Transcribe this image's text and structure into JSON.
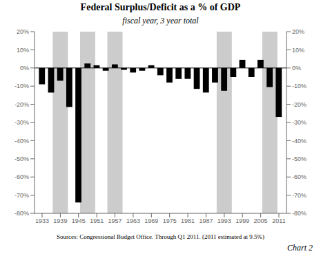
{
  "chart_data": {
    "type": "bar",
    "title": "Federal Surplus/Deficit as a % of GDP",
    "subtitle": "fiscal year, 3 year total",
    "footnote": "Sources:  Congressional Budget Office.  Through Q1 2011.  (2011 estimated at 9.5%)",
    "chart_label": "Chart 2",
    "x": [
      1933,
      1936,
      1939,
      1942,
      1945,
      1948,
      1951,
      1954,
      1957,
      1960,
      1963,
      1966,
      1969,
      1972,
      1975,
      1978,
      1981,
      1984,
      1987,
      1990,
      1993,
      1996,
      1999,
      2002,
      2005,
      2008,
      2011
    ],
    "values": [
      -9.0,
      -13.5,
      -7.0,
      -21.5,
      -74.0,
      2.5,
      1.5,
      -1.5,
      2.0,
      -1.0,
      -2.5,
      -1.5,
      1.5,
      -4.0,
      -8.0,
      -6.0,
      -6.0,
      -11.5,
      -13.5,
      -8.0,
      -12.5,
      -5.0,
      4.5,
      -5.0,
      4.5,
      -10.5,
      -27.0
    ],
    "color": "#000000",
    "bands": {
      "ranges": [
        [
          1936.5,
          1941.5
        ],
        [
          1945.5,
          1950.5
        ],
        [
          1954.5,
          1959.5
        ],
        [
          1990.5,
          1995.5
        ],
        [
          2005.5,
          2010.5
        ]
      ],
      "color": "#cccccc"
    },
    "xlim": [
      1930.5,
      2013.5
    ],
    "xticks": [
      1933,
      1939,
      1945,
      1951,
      1957,
      1963,
      1969,
      1975,
      1981,
      1987,
      1993,
      1999,
      2005,
      2011
    ],
    "ylim": [
      -80,
      20
    ],
    "yticks": [
      {
        "value": -80,
        "label": "-80%"
      },
      {
        "value": -70,
        "label": "-70%"
      },
      {
        "value": -60,
        "label": "-60%"
      },
      {
        "value": -50,
        "label": "-50%"
      },
      {
        "value": -40,
        "label": "-40%"
      },
      {
        "value": -30,
        "label": "-30%"
      },
      {
        "value": -20,
        "label": "-20%"
      },
      {
        "value": -10,
        "label": "-10%"
      },
      {
        "value": 0,
        "label": "0%"
      },
      {
        "value": 10,
        "label": "10%"
      },
      {
        "value": 20,
        "label": "20%"
      }
    ],
    "y2lim": [
      -80,
      20
    ],
    "y2ticks": [
      {
        "value": -80,
        "label": "-80%"
      },
      {
        "value": -70,
        "label": "-70%"
      },
      {
        "value": -60,
        "label": "-60%"
      },
      {
        "value": -50,
        "label": "-50%"
      },
      {
        "value": -40,
        "label": "-40%"
      },
      {
        "value": -30,
        "label": "-30%"
      },
      {
        "value": -20,
        "label": "-20%"
      },
      {
        "value": -10,
        "label": "-10%"
      },
      {
        "value": 0,
        "label": "0%"
      },
      {
        "value": 10,
        "label": "10%"
      },
      {
        "value": 20,
        "label": "20%"
      }
    ],
    "grid": false
  }
}
